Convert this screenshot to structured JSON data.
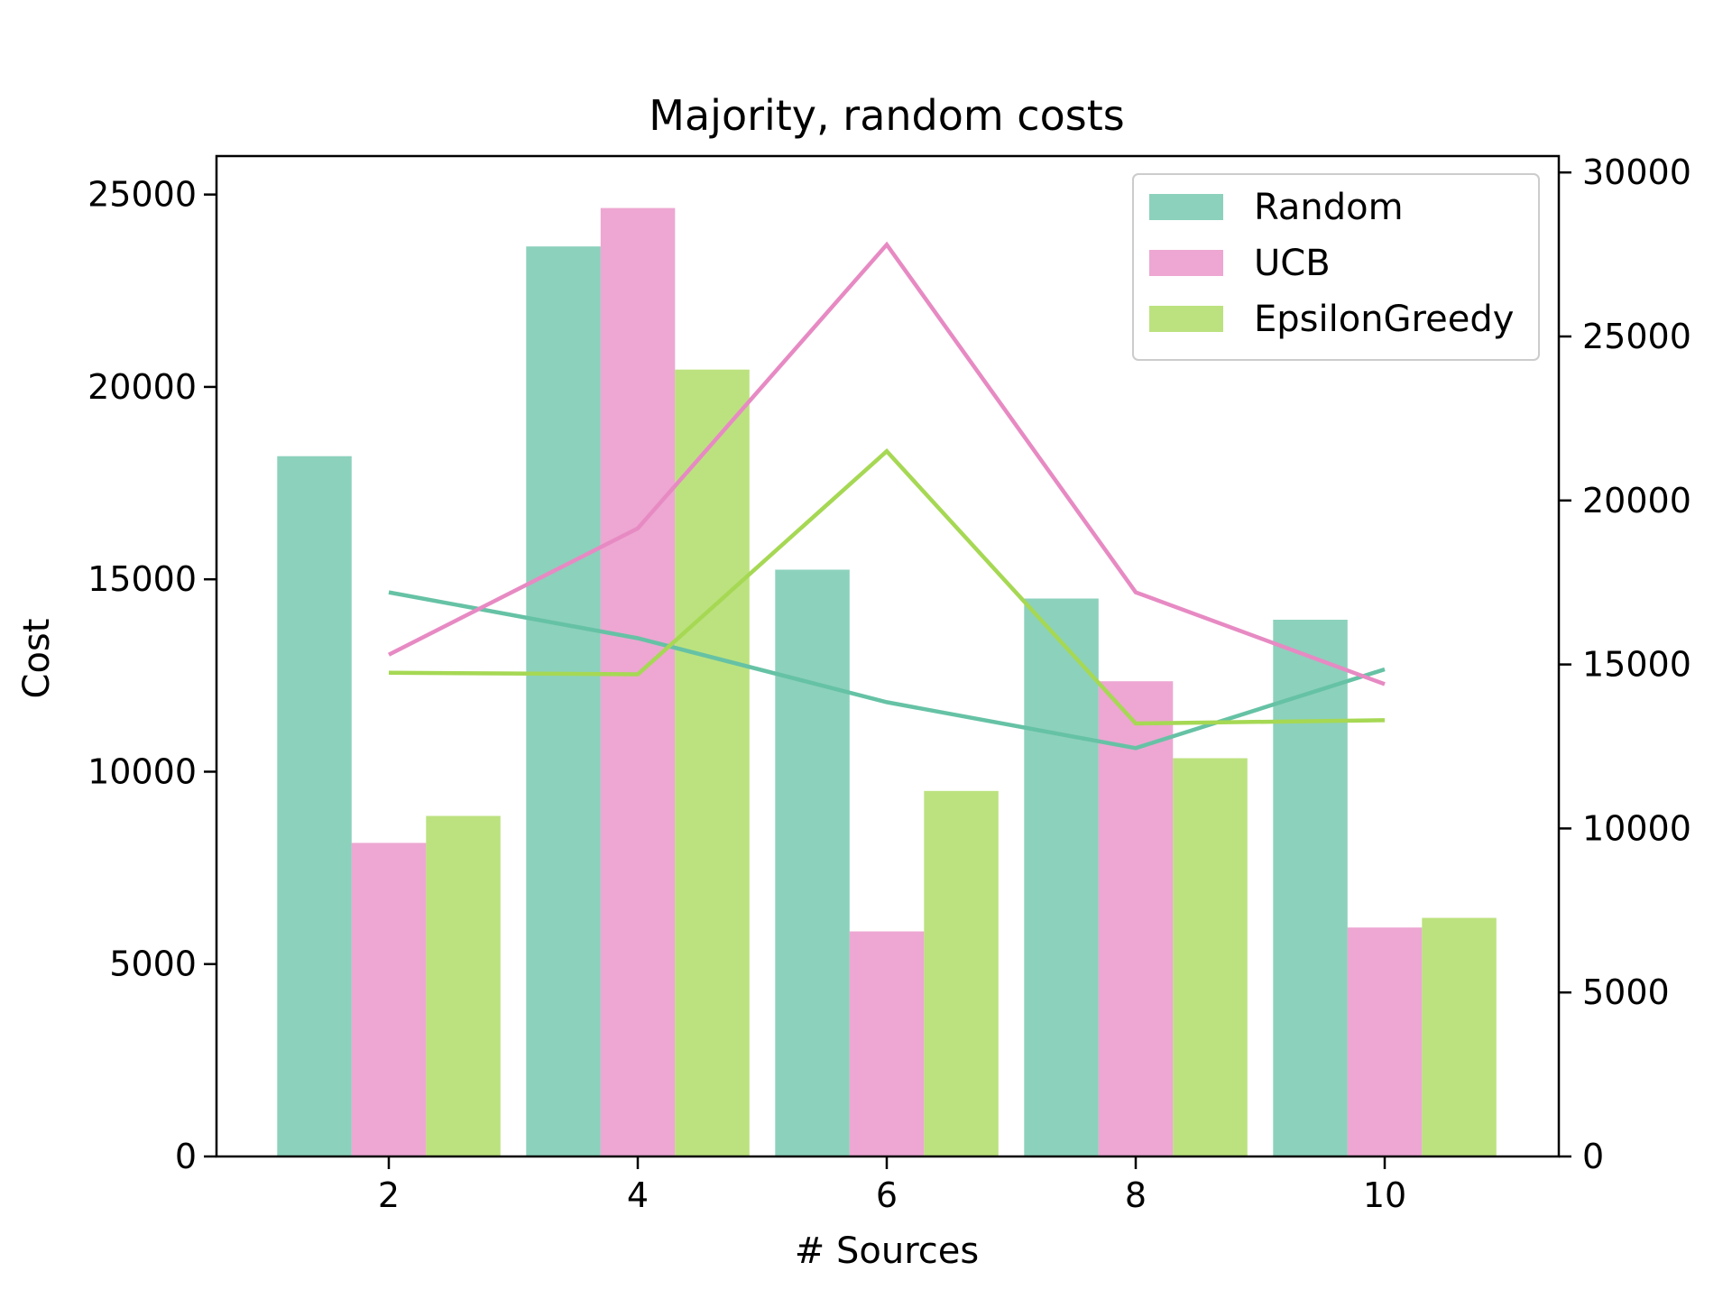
{
  "chart_data": {
    "type": "bar",
    "title": "Majority, random costs",
    "xlabel": "# Sources",
    "ylabel": "Cost",
    "y2label": "",
    "categories": [
      "2",
      "4",
      "6",
      "8",
      "10"
    ],
    "ylim": [
      0,
      26000
    ],
    "y2lim": [
      0,
      30500
    ],
    "yticks": [
      "0",
      "5000",
      "10000",
      "15000",
      "20000",
      "25000"
    ],
    "y2ticks": [
      "0",
      "5000",
      "10000",
      "15000",
      "20000",
      "25000",
      "30000"
    ],
    "legend_position": "top-right",
    "series": [
      {
        "name": "Random",
        "color": "#66c2a5",
        "values": [
          18200,
          23650,
          15250,
          14500,
          13950
        ],
        "line_values": [
          17200,
          15800,
          13850,
          12450,
          14850
        ]
      },
      {
        "name": "UCB",
        "color": "#e78ac3",
        "values": [
          8150,
          24650,
          5850,
          12350,
          5950
        ],
        "line_values": [
          15300,
          19150,
          27800,
          17200,
          14400
        ]
      },
      {
        "name": "EpsilonGreedy",
        "color": "#a6d854",
        "values": [
          8850,
          20450,
          9500,
          10350,
          6200
        ],
        "line_values": [
          14750,
          14700,
          21500,
          13200,
          13300
        ]
      }
    ]
  }
}
